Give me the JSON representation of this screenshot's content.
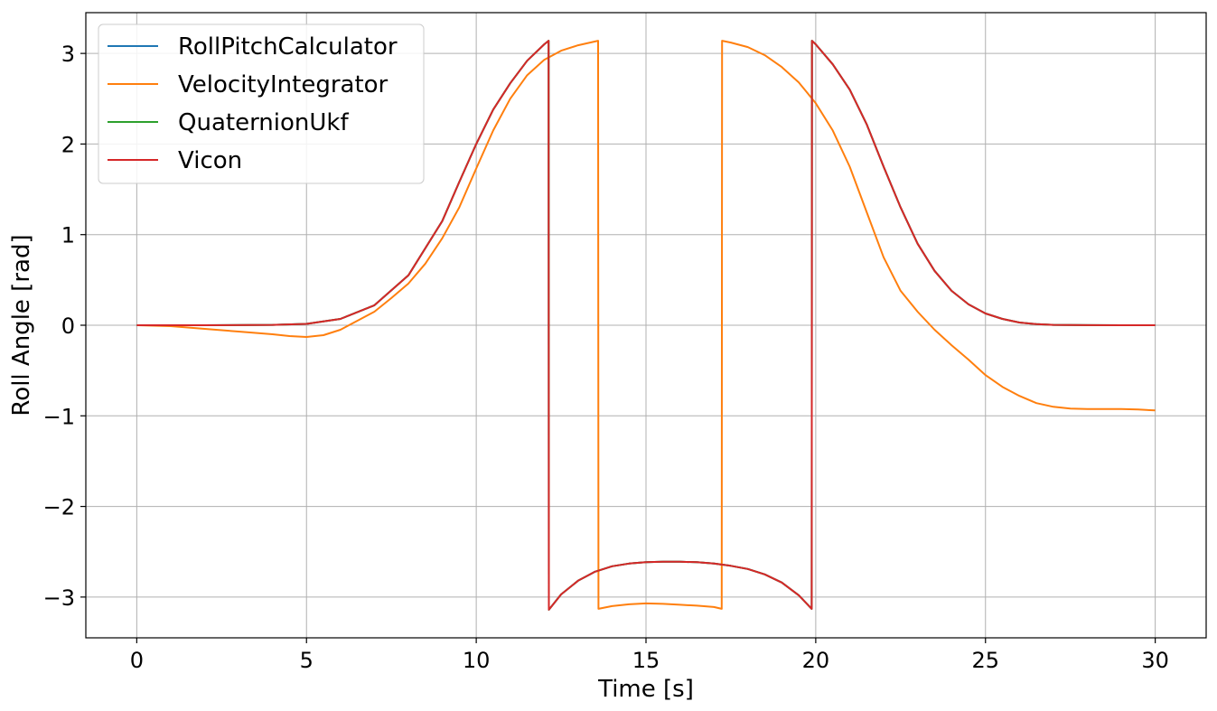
{
  "chart_data": {
    "type": "line",
    "title": "",
    "xlabel": "Time [s]",
    "ylabel": "Roll Angle [rad]",
    "xlim": [
      -1.5,
      31.5
    ],
    "ylim": [
      -3.45,
      3.45
    ],
    "xticks": [
      0,
      5,
      10,
      15,
      20,
      25,
      30
    ],
    "yticks": [
      -3,
      -2,
      -1,
      0,
      1,
      2,
      3
    ],
    "xtick_labels": [
      "0",
      "5",
      "10",
      "15",
      "20",
      "25",
      "30"
    ],
    "ytick_labels": [
      "−3",
      "−2",
      "−1",
      "0",
      "1",
      "2",
      "3"
    ],
    "grid": true,
    "legend_position": "top-left",
    "series": [
      {
        "name": "RollPitchCalculator",
        "color": "#1f77b4",
        "x": [
          0,
          2,
          4,
          5,
          6,
          7,
          8,
          9,
          9.5,
          10,
          10.5,
          11,
          11.5,
          12,
          12.13,
          12.14,
          12.5,
          13,
          13.5,
          14,
          14.5,
          15,
          15.5,
          16,
          16.5,
          17,
          17.5,
          18,
          18.5,
          19,
          19.5,
          19.88,
          19.89,
          20,
          20.5,
          21,
          21.5,
          22,
          22.5,
          23,
          23.5,
          24,
          24.5,
          25,
          25.5,
          26,
          26.5,
          27,
          28,
          29,
          30
        ],
        "y": [
          0,
          0,
          0.004,
          0.015,
          0.07,
          0.22,
          0.55,
          1.15,
          1.58,
          2.0,
          2.38,
          2.67,
          2.92,
          3.1,
          3.14,
          -3.14,
          -2.97,
          -2.82,
          -2.72,
          -2.66,
          -2.63,
          -2.615,
          -2.61,
          -2.61,
          -2.615,
          -2.63,
          -2.655,
          -2.69,
          -2.75,
          -2.84,
          -2.98,
          -3.13,
          3.14,
          3.1,
          2.88,
          2.6,
          2.22,
          1.75,
          1.3,
          0.9,
          0.6,
          0.38,
          0.23,
          0.13,
          0.07,
          0.03,
          0.012,
          0.004,
          0.001,
          0,
          0
        ]
      },
      {
        "name": "VelocityIntegrator",
        "color": "#ff7f0e",
        "x": [
          0,
          1,
          2,
          3,
          4,
          4.5,
          5,
          5.5,
          6,
          6.5,
          7,
          7.5,
          8,
          8.5,
          9,
          9.5,
          10,
          10.5,
          11,
          11.5,
          12,
          12.5,
          13,
          13.59,
          13.6,
          14,
          14.5,
          15,
          15.5,
          16,
          16.5,
          17,
          17.23,
          17.24,
          17.5,
          18,
          18.5,
          19,
          19.5,
          20,
          20.5,
          21,
          21.5,
          22,
          22.5,
          23,
          23.5,
          24,
          24.5,
          25,
          25.5,
          26,
          26.5,
          27,
          27.5,
          28,
          28.5,
          29,
          29.5,
          30
        ],
        "y": [
          0,
          -0.01,
          -0.04,
          -0.07,
          -0.1,
          -0.12,
          -0.13,
          -0.11,
          -0.05,
          0.05,
          0.15,
          0.3,
          0.46,
          0.68,
          0.96,
          1.3,
          1.73,
          2.15,
          2.5,
          2.76,
          2.93,
          3.03,
          3.09,
          3.14,
          -3.13,
          -3.1,
          -3.08,
          -3.07,
          -3.075,
          -3.085,
          -3.095,
          -3.11,
          -3.13,
          3.14,
          3.12,
          3.07,
          2.98,
          2.85,
          2.68,
          2.45,
          2.15,
          1.75,
          1.25,
          0.75,
          0.38,
          0.15,
          -0.05,
          -0.22,
          -0.38,
          -0.55,
          -0.68,
          -0.78,
          -0.86,
          -0.9,
          -0.92,
          -0.925,
          -0.925,
          -0.925,
          -0.93,
          -0.94
        ]
      },
      {
        "name": "QuaternionUkf",
        "color": "#2ca02c",
        "x": [
          0,
          2,
          4,
          5,
          6,
          7,
          8,
          9,
          9.5,
          10,
          10.5,
          11,
          11.5,
          12,
          12.13,
          12.14,
          12.5,
          13,
          13.5,
          14,
          14.5,
          15,
          15.5,
          16,
          16.5,
          17,
          17.5,
          18,
          18.5,
          19,
          19.5,
          19.88,
          19.89,
          20,
          20.5,
          21,
          21.5,
          22,
          22.5,
          23,
          23.5,
          24,
          24.5,
          25,
          25.5,
          26,
          26.5,
          27,
          28,
          29,
          30
        ],
        "y": [
          0,
          0,
          0.004,
          0.015,
          0.07,
          0.22,
          0.55,
          1.15,
          1.58,
          2.0,
          2.38,
          2.67,
          2.92,
          3.1,
          3.14,
          -3.14,
          -2.97,
          -2.82,
          -2.72,
          -2.66,
          -2.63,
          -2.615,
          -2.61,
          -2.61,
          -2.615,
          -2.63,
          -2.655,
          -2.69,
          -2.75,
          -2.84,
          -2.98,
          -3.13,
          3.14,
          3.1,
          2.88,
          2.6,
          2.22,
          1.75,
          1.3,
          0.9,
          0.6,
          0.38,
          0.23,
          0.13,
          0.07,
          0.03,
          0.012,
          0.004,
          0.001,
          0,
          0
        ]
      },
      {
        "name": "Vicon",
        "color": "#d62728",
        "x": [
          0,
          2,
          4,
          5,
          6,
          7,
          8,
          9,
          9.5,
          10,
          10.5,
          11,
          11.5,
          12,
          12.13,
          12.14,
          12.5,
          13,
          13.5,
          14,
          14.5,
          15,
          15.5,
          16,
          16.5,
          17,
          17.5,
          18,
          18.5,
          19,
          19.5,
          19.88,
          19.89,
          20,
          20.5,
          21,
          21.5,
          22,
          22.5,
          23,
          23.5,
          24,
          24.5,
          25,
          25.5,
          26,
          26.5,
          27,
          28,
          29,
          30
        ],
        "y": [
          0,
          0,
          0.004,
          0.015,
          0.07,
          0.22,
          0.55,
          1.15,
          1.58,
          2.0,
          2.38,
          2.67,
          2.92,
          3.1,
          3.14,
          -3.14,
          -2.97,
          -2.82,
          -2.72,
          -2.66,
          -2.63,
          -2.615,
          -2.61,
          -2.61,
          -2.615,
          -2.63,
          -2.655,
          -2.69,
          -2.75,
          -2.84,
          -2.98,
          -3.13,
          3.14,
          3.1,
          2.88,
          2.6,
          2.22,
          1.75,
          1.3,
          0.9,
          0.6,
          0.38,
          0.23,
          0.13,
          0.07,
          0.03,
          0.012,
          0.004,
          0.001,
          0,
          0
        ]
      }
    ]
  }
}
